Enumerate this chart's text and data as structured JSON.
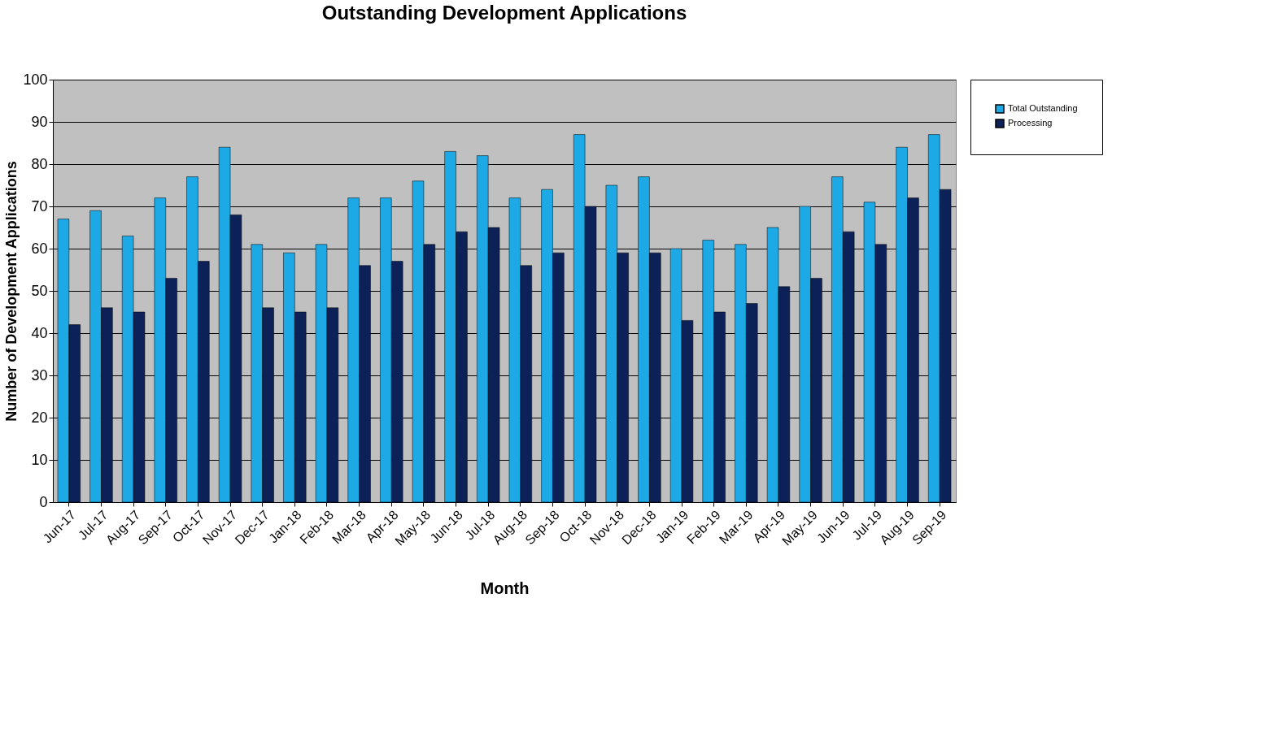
{
  "chart_data": {
    "type": "bar",
    "title": "Outstanding Development Applications",
    "xlabel": "Month",
    "ylabel": "Number of Development Applications",
    "categories": [
      "Jun-17",
      "Jul-17",
      "Aug-17",
      "Sep-17",
      "Oct-17",
      "Nov-17",
      "Dec-17",
      "Jan-18",
      "Feb-18",
      "Mar-18",
      "Apr-18",
      "May-18",
      "Jun-18",
      "Jul-18",
      "Aug-18",
      "Sep-18",
      "Oct-18",
      "Nov-18",
      "Dec-18",
      "Jan-19",
      "Feb-19",
      "Mar-19",
      "Apr-19",
      "May-19",
      "Jun-19",
      "Jul-19",
      "Aug-19",
      "Sep-19"
    ],
    "series": [
      {
        "name": "Total Outstanding",
        "color": "#1ca9e6",
        "values": [
          67,
          69,
          63,
          72,
          77,
          84,
          61,
          59,
          61,
          72,
          72,
          76,
          83,
          82,
          72,
          74,
          87,
          75,
          77,
          60,
          62,
          61,
          65,
          70,
          77,
          71,
          84,
          87
        ]
      },
      {
        "name": "Processing",
        "color": "#0b2158",
        "values": [
          42,
          46,
          45,
          53,
          57,
          68,
          46,
          45,
          46,
          56,
          57,
          61,
          64,
          65,
          56,
          59,
          70,
          59,
          59,
          43,
          45,
          47,
          51,
          53,
          64,
          61,
          72,
          74
        ]
      }
    ],
    "ylim": [
      0,
      100
    ],
    "yticks": [
      0,
      10,
      20,
      30,
      40,
      50,
      60,
      70,
      80,
      90,
      100
    ],
    "grid": "y",
    "legend": "right"
  }
}
